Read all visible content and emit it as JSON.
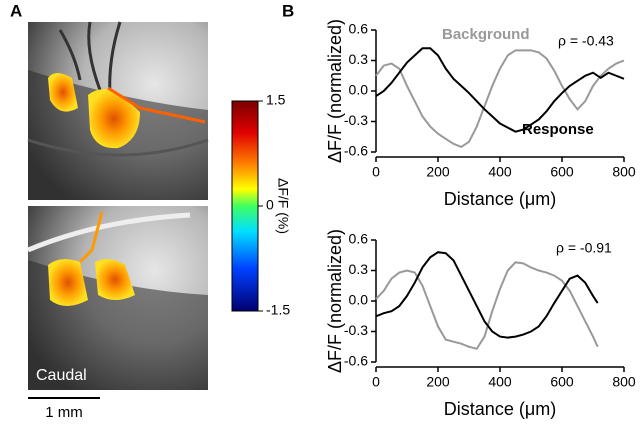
{
  "panel_labels": [
    "A",
    "B"
  ],
  "image_label": "Caudal",
  "scale_bar": "1 mm",
  "colorbar": {
    "label": "ΔF/F (%)",
    "lim": [
      -1.5,
      1.5
    ],
    "ticks": [
      1.5,
      0,
      -1.5
    ]
  },
  "chart_data": [
    {
      "type": "line",
      "x_label": "Distance (μm)",
      "y_label": "ΔF/F (normalized)",
      "annotation": "ρ = -0.43",
      "x": [
        0,
        25,
        50,
        75,
        100,
        125,
        150,
        175,
        200,
        225,
        250,
        275,
        300,
        325,
        350,
        375,
        400,
        425,
        450,
        475,
        500,
        525,
        550,
        575,
        600,
        625,
        650,
        675,
        700,
        725,
        750,
        775,
        800
      ],
      "series": [
        {
          "name": "Background",
          "color": "#999999",
          "values": [
            0.15,
            0.25,
            0.27,
            0.22,
            0.05,
            -0.1,
            -0.25,
            -0.35,
            -0.42,
            -0.47,
            -0.52,
            -0.55,
            -0.5,
            -0.35,
            -0.15,
            0.05,
            0.22,
            0.35,
            0.4,
            0.4,
            0.4,
            0.38,
            0.32,
            0.2,
            0.05,
            -0.08,
            -0.18,
            -0.1,
            0.05,
            0.15,
            0.22,
            0.27,
            0.3
          ]
        },
        {
          "name": "Response",
          "color": "#000000",
          "values": [
            -0.05,
            0.0,
            0.08,
            0.18,
            0.28,
            0.35,
            0.42,
            0.42,
            0.35,
            0.22,
            0.12,
            0.05,
            -0.02,
            -0.1,
            -0.18,
            -0.25,
            -0.32,
            -0.36,
            -0.4,
            -0.38,
            -0.33,
            -0.28,
            -0.2,
            -0.1,
            -0.02,
            0.05,
            0.1,
            0.15,
            0.18,
            0.13,
            0.18,
            0.15,
            0.12
          ]
        }
      ],
      "xlim": [
        0,
        800
      ],
      "xticks": [
        0,
        200,
        400,
        600,
        800
      ],
      "ylim": [
        -0.6,
        0.6
      ],
      "yticks": [
        0.6,
        0.3,
        {
          "value": 0,
          "label": "0.0"
        },
        -0.3,
        -0.6
      ]
    },
    {
      "type": "line",
      "x_label": "Distance (μm)",
      "y_label": "ΔF/F (normalized)",
      "annotation": "ρ = -0.91",
      "x": [
        0,
        25,
        50,
        75,
        100,
        125,
        150,
        175,
        200,
        225,
        250,
        275,
        300,
        325,
        350,
        375,
        400,
        425,
        450,
        475,
        500,
        525,
        550,
        575,
        600,
        625,
        650,
        675,
        700,
        715
      ],
      "series": [
        {
          "color": "#999999",
          "values": [
            0.02,
            0.1,
            0.22,
            0.28,
            0.3,
            0.28,
            0.15,
            -0.05,
            -0.25,
            -0.38,
            -0.4,
            -0.42,
            -0.45,
            -0.47,
            -0.35,
            -0.1,
            0.12,
            0.3,
            0.38,
            0.37,
            0.33,
            0.3,
            0.28,
            0.25,
            0.2,
            0.1,
            -0.05,
            -0.2,
            -0.35,
            -0.45
          ]
        },
        {
          "color": "#000000",
          "values": [
            -0.15,
            -0.12,
            -0.1,
            -0.05,
            0.05,
            0.18,
            0.33,
            0.43,
            0.48,
            0.47,
            0.4,
            0.25,
            0.1,
            -0.05,
            -0.2,
            -0.3,
            -0.35,
            -0.36,
            -0.35,
            -0.33,
            -0.3,
            -0.25,
            -0.15,
            -0.02,
            0.1,
            0.22,
            0.25,
            0.18,
            0.05,
            -0.02
          ]
        }
      ],
      "xlim": [
        0,
        800
      ],
      "xticks": [
        0,
        200,
        400,
        600,
        800
      ],
      "ylim": [
        -0.6,
        0.6
      ],
      "yticks": [
        0.6,
        0.3,
        {
          "value": 0,
          "label": "0.0"
        },
        -0.3,
        -0.6
      ]
    }
  ]
}
